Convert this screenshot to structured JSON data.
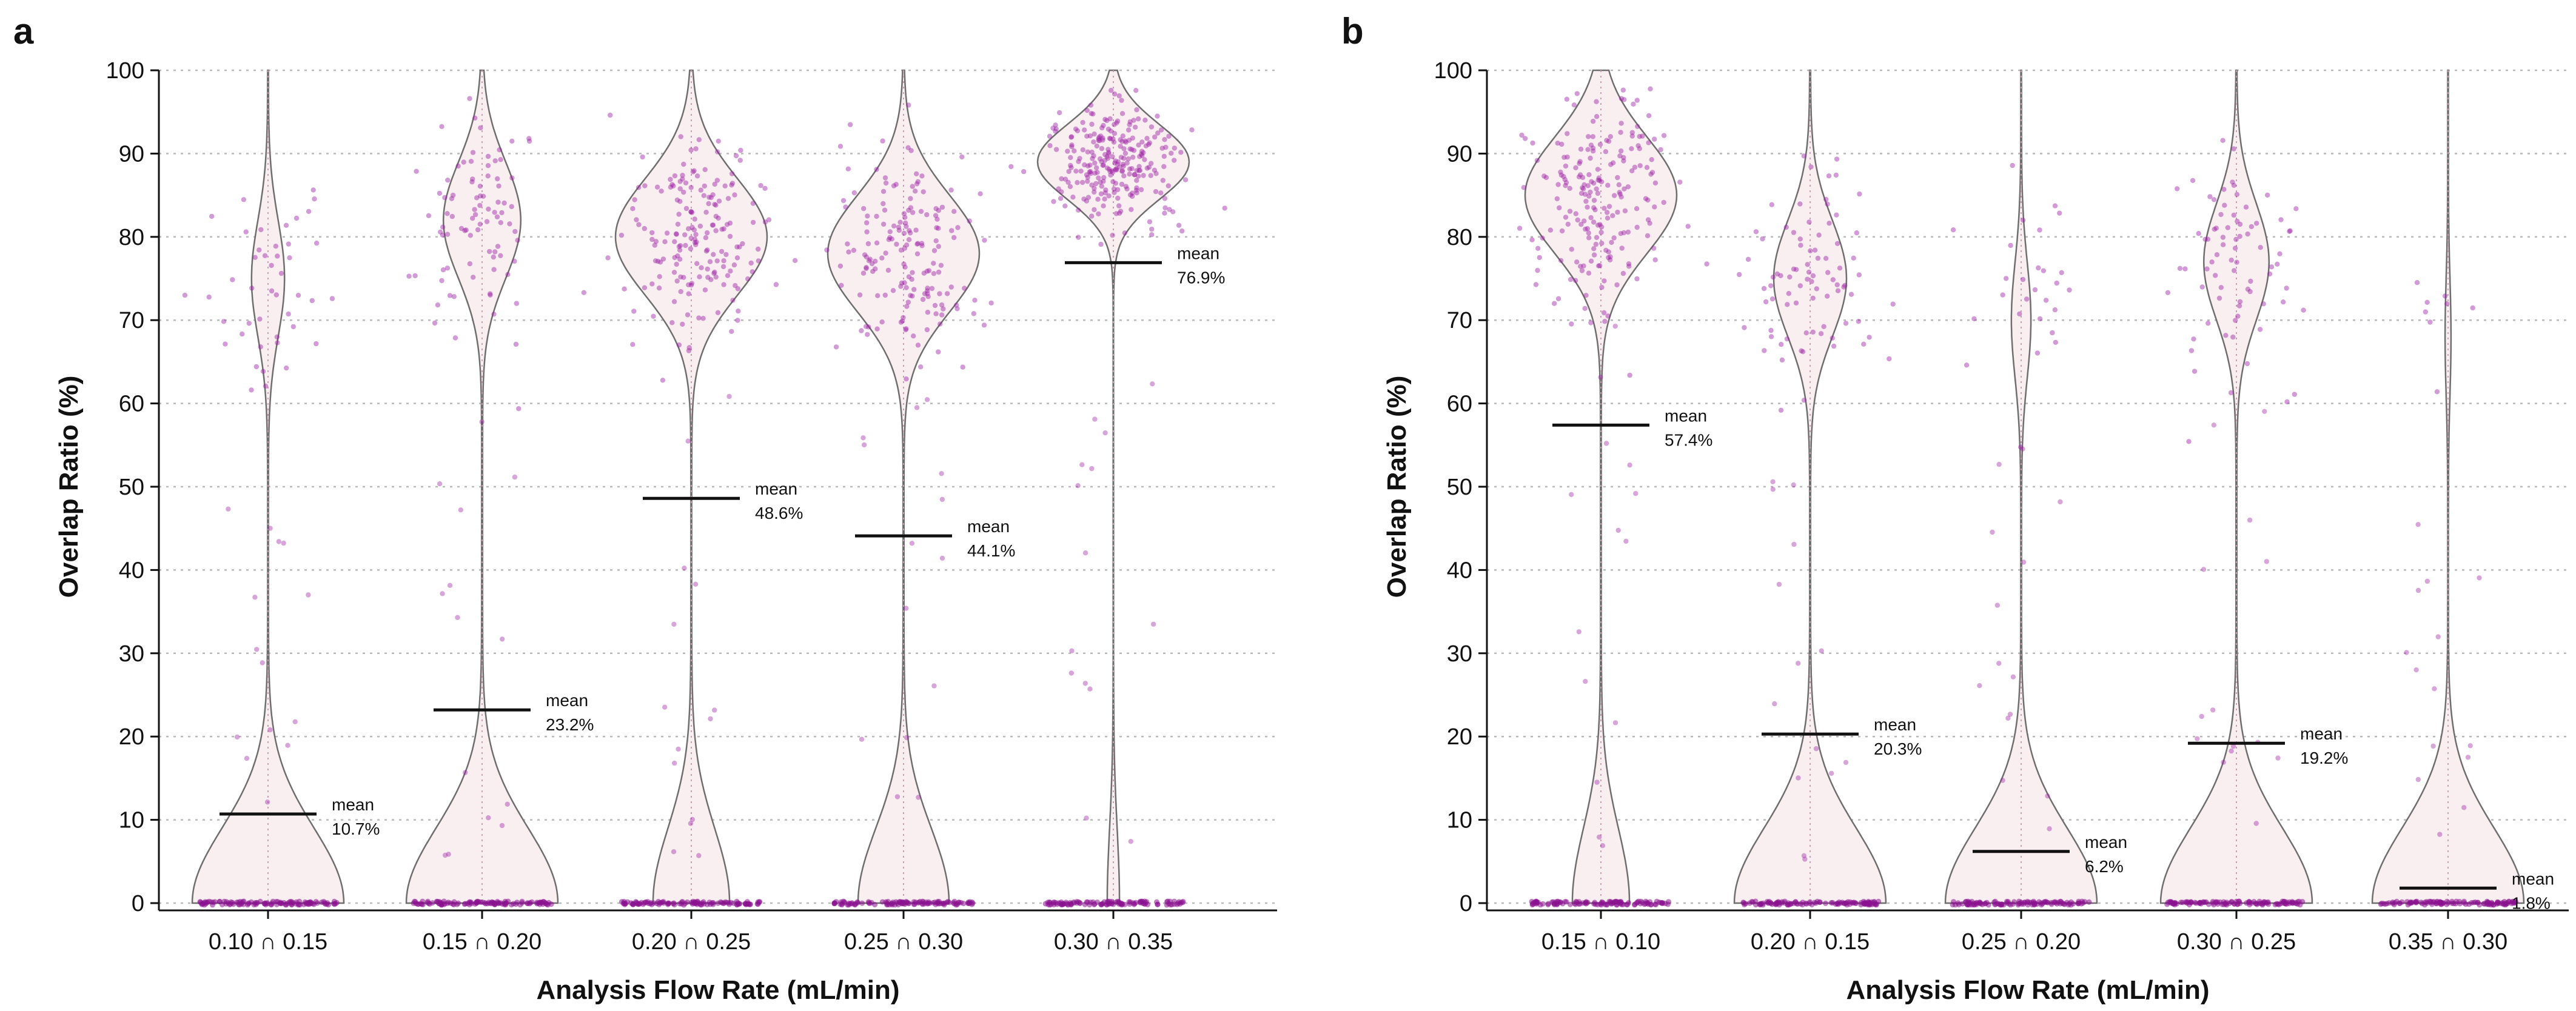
{
  "chart_data": [
    {
      "type": "violin",
      "panel": "a",
      "xlabel": "Analysis Flow Rate (mL/min)",
      "ylabel": "Overlap Ratio (%)",
      "ylim": [
        0,
        100
      ],
      "yticks": [
        "0",
        "10",
        "20",
        "30",
        "40",
        "50",
        "60",
        "70",
        "80",
        "90",
        "100"
      ],
      "grid": "horizontal dotted",
      "mean_word": "mean",
      "categories": [
        "0.10 ∩ 0.15",
        "0.15 ∩ 0.20",
        "0.20 ∩ 0.25",
        "0.25 ∩ 0.30",
        "0.30 ∩ 0.35"
      ],
      "means": [
        10.7,
        23.2,
        48.6,
        44.1,
        76.9
      ],
      "mean_labels": [
        "10.7%",
        "23.2%",
        "48.6%",
        "44.1%",
        "76.9%"
      ],
      "modes": [
        [
          0,
          75
        ],
        [
          0,
          82
        ],
        [
          0,
          80
        ],
        [
          0,
          78
        ],
        [
          0,
          89
        ]
      ]
    },
    {
      "type": "violin",
      "panel": "b",
      "xlabel": "Analysis Flow Rate (mL/min)",
      "ylabel": "Overlap Ratio (%)",
      "ylim": [
        0,
        100
      ],
      "yticks": [
        "0",
        "10",
        "20",
        "30",
        "40",
        "50",
        "60",
        "70",
        "80",
        "90",
        "100"
      ],
      "grid": "horizontal dotted",
      "mean_word": "mean",
      "categories": [
        "0.15 ∩ 0.10",
        "0.20 ∩ 0.15",
        "0.25 ∩ 0.20",
        "0.30 ∩ 0.25",
        "0.35 ∩ 0.30"
      ],
      "means": [
        57.4,
        20.3,
        6.2,
        19.2,
        1.8
      ],
      "mean_labels": [
        "57.4%",
        "20.3%",
        "6.2%",
        "19.2%",
        "1.8%"
      ],
      "modes": [
        [
          0,
          85
        ],
        [
          0,
          75
        ],
        [
          0,
          70
        ],
        [
          0,
          77
        ],
        [
          0,
          68
        ]
      ]
    }
  ],
  "colors": {
    "violin_fill": "#f9eef0",
    "violin_stroke": "#6e6e6e",
    "point": "#9b1fa3",
    "mean_line": "#111111",
    "grid": "#b9b9b9"
  }
}
